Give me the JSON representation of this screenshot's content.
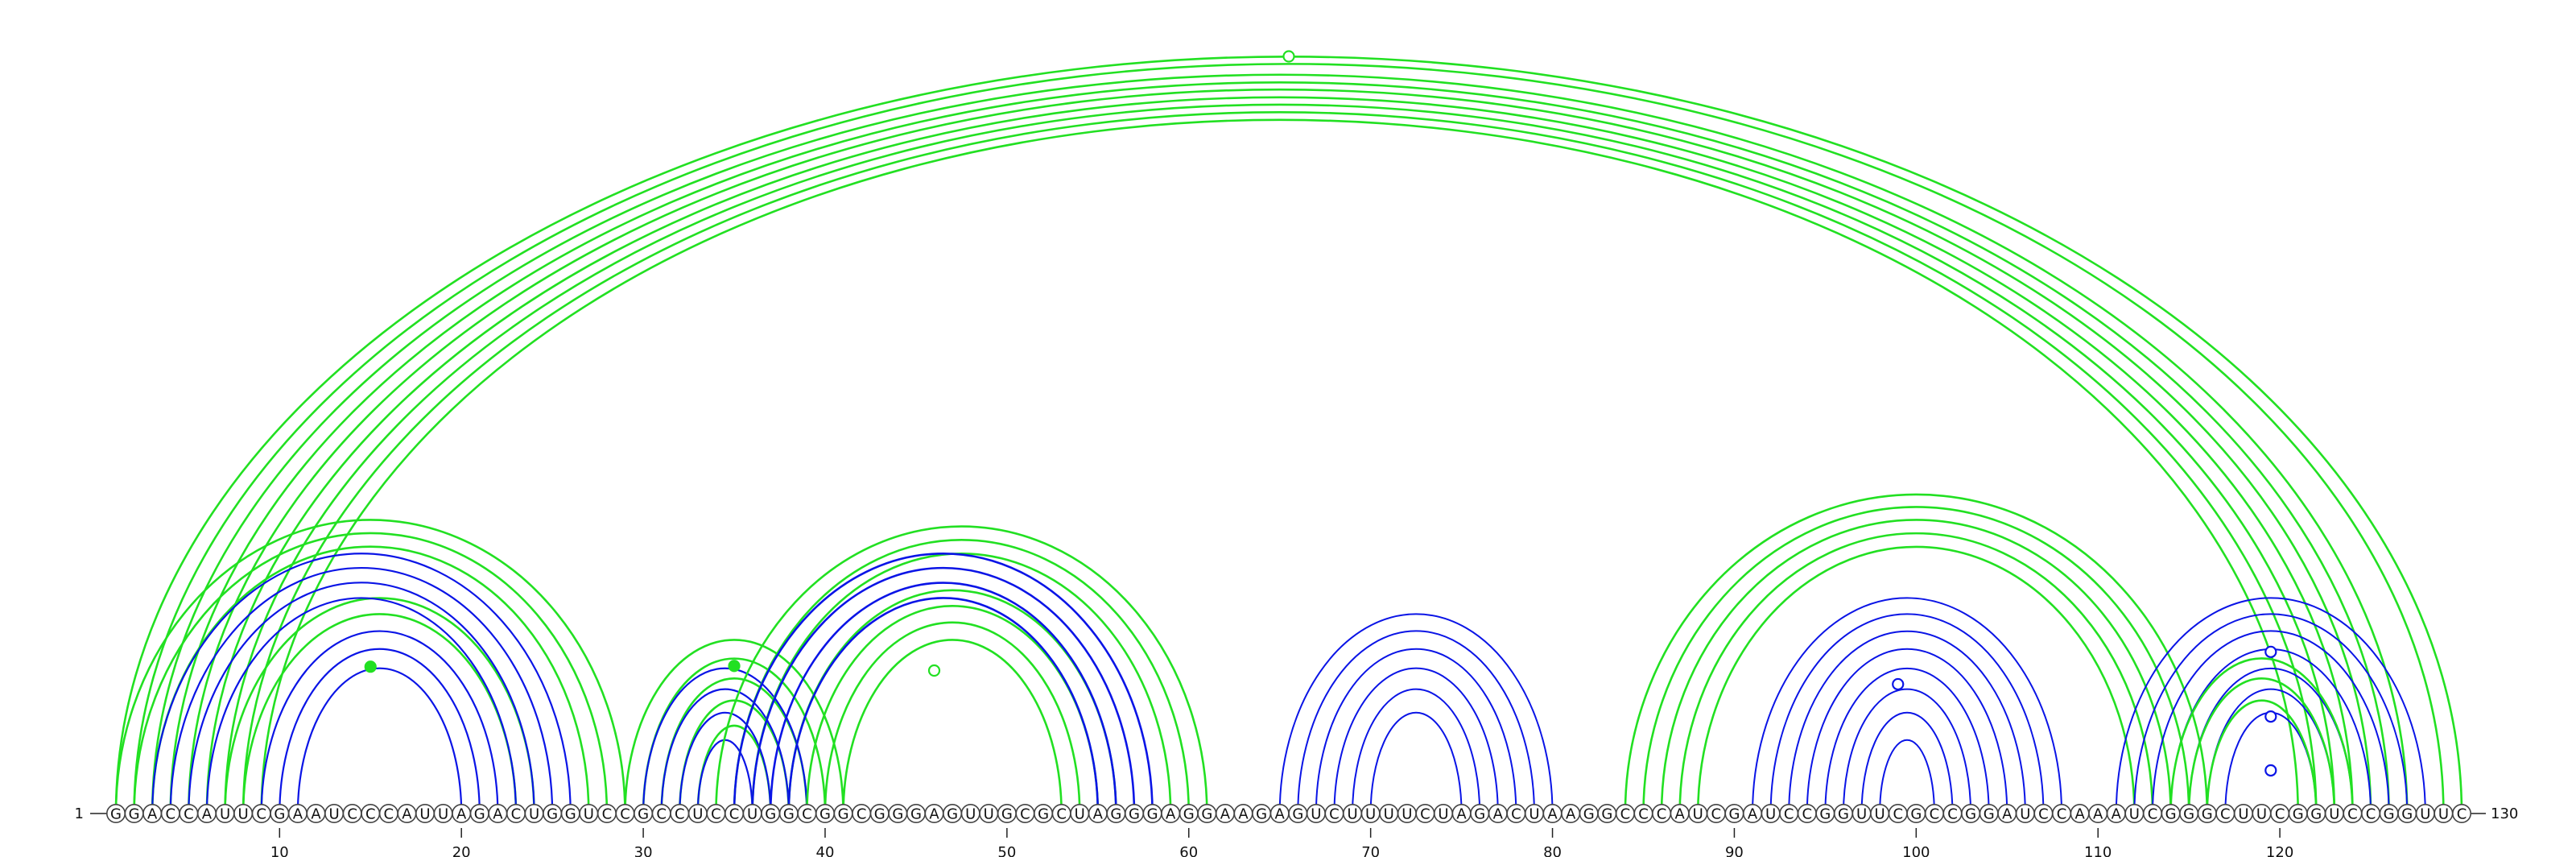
{
  "sequence": "GGACCAUUCGAAUCCCAUUAGACUGGUCCGCCUCCUGGCGGCGGGAGUUGCGCUAGGGAGGAAGAGUCUUUUCUAGACUAAGGCCCAUCGAUCCGGUUCGCCGGAUCCAAAUCGGGCUUCGGUCCGGUUC",
  "start_label": "1",
  "end_label": "130",
  "ticks": [
    "10",
    "20",
    "30",
    "40",
    "50",
    "60",
    "70",
    "80",
    "90",
    "100",
    "110",
    "120"
  ],
  "colors": {
    "green": "#22e022",
    "blue": "#0a14e6"
  },
  "chart_data": {
    "type": "arc-diagram",
    "length": 130,
    "tick_step": 10,
    "arc_sets": [
      {
        "color": "green",
        "lw": 2.6,
        "pairs": [
          [
            1,
            130
          ],
          [
            2,
            129
          ],
          [
            3,
            127
          ],
          [
            4,
            126
          ],
          [
            5,
            125
          ],
          [
            6,
            124
          ],
          [
            7,
            123
          ],
          [
            8,
            122
          ],
          [
            9,
            121
          ]
        ]
      },
      {
        "color": "green",
        "lw": 2.6,
        "pairs": [
          [
            1,
            29
          ],
          [
            2,
            28
          ],
          [
            3,
            27
          ],
          [
            7,
            24
          ],
          [
            8,
            23
          ]
        ]
      },
      {
        "color": "blue",
        "lw": 2.2,
        "pairs": [
          [
            3,
            26
          ],
          [
            4,
            25
          ],
          [
            5,
            24
          ],
          [
            6,
            23
          ],
          [
            9,
            22
          ],
          [
            10,
            21
          ],
          [
            11,
            20
          ]
        ]
      },
      {
        "color": "green",
        "lw": 2.6,
        "pairs": [
          [
            29,
            41
          ],
          [
            30,
            40
          ],
          [
            31,
            39
          ],
          [
            32,
            38
          ],
          [
            33,
            37
          ]
        ]
      },
      {
        "color": "blue",
        "lw": 2.2,
        "pairs": [
          [
            30,
            39
          ],
          [
            31,
            38
          ],
          [
            32,
            37
          ],
          [
            33,
            36
          ]
        ]
      },
      {
        "color": "green",
        "lw": 2.6,
        "pairs": [
          [
            34,
            61
          ],
          [
            35,
            60
          ],
          [
            36,
            59
          ],
          [
            38,
            56
          ],
          [
            39,
            55
          ],
          [
            40,
            54
          ],
          [
            41,
            53
          ]
        ]
      },
      {
        "color": "blue",
        "lw": 2.6,
        "pairs": [
          [
            35,
            58
          ],
          [
            36,
            57
          ],
          [
            37,
            56
          ],
          [
            38,
            55
          ]
        ]
      },
      {
        "color": "blue",
        "lw": 2.0,
        "pairs": [
          [
            65,
            80
          ],
          [
            66,
            79
          ],
          [
            67,
            78
          ],
          [
            68,
            77
          ],
          [
            69,
            76
          ],
          [
            70,
            75
          ]
        ]
      },
      {
        "color": "green",
        "lw": 2.6,
        "pairs": [
          [
            84,
            116
          ],
          [
            85,
            115
          ],
          [
            86,
            114
          ],
          [
            87,
            113
          ],
          [
            88,
            112
          ]
        ]
      },
      {
        "color": "blue",
        "lw": 2.0,
        "pairs": [
          [
            91,
            108
          ],
          [
            92,
            107
          ],
          [
            93,
            106
          ],
          [
            94,
            105
          ],
          [
            95,
            104
          ],
          [
            96,
            103
          ],
          [
            97,
            102
          ],
          [
            98,
            101
          ]
        ]
      },
      {
        "color": "blue",
        "lw": 2.0,
        "pairs": [
          [
            111,
            128
          ],
          [
            112,
            127
          ],
          [
            113,
            126
          ],
          [
            114,
            125
          ],
          [
            115,
            124
          ],
          [
            116,
            123
          ],
          [
            117,
            122
          ]
        ]
      },
      {
        "color": "green",
        "lw": 2.6,
        "pairs": [
          [
            114,
            124
          ],
          [
            115,
            123
          ],
          [
            116,
            122
          ]
        ]
      }
    ],
    "markers": [
      {
        "pos": 65.5,
        "height_frac": 1.0,
        "color": "green",
        "filled": false
      },
      {
        "pos": 15.0,
        "height_frac": 0.5,
        "color": "green",
        "filled": true
      },
      {
        "pos": 35.0,
        "height_frac": 0.85,
        "color": "green",
        "filled": true
      },
      {
        "pos": 46.0,
        "height_frac": 0.55,
        "color": "green",
        "filled": false
      },
      {
        "pos": 99.0,
        "height_frac": 0.6,
        "color": "blue",
        "filled": false
      },
      {
        "pos": 119.5,
        "height_frac": 0.2,
        "color": "blue",
        "filled": false
      },
      {
        "pos": 119.5,
        "height_frac": 0.45,
        "color": "blue",
        "filled": false
      },
      {
        "pos": 119.5,
        "height_frac": 0.75,
        "color": "blue",
        "filled": false
      }
    ]
  }
}
